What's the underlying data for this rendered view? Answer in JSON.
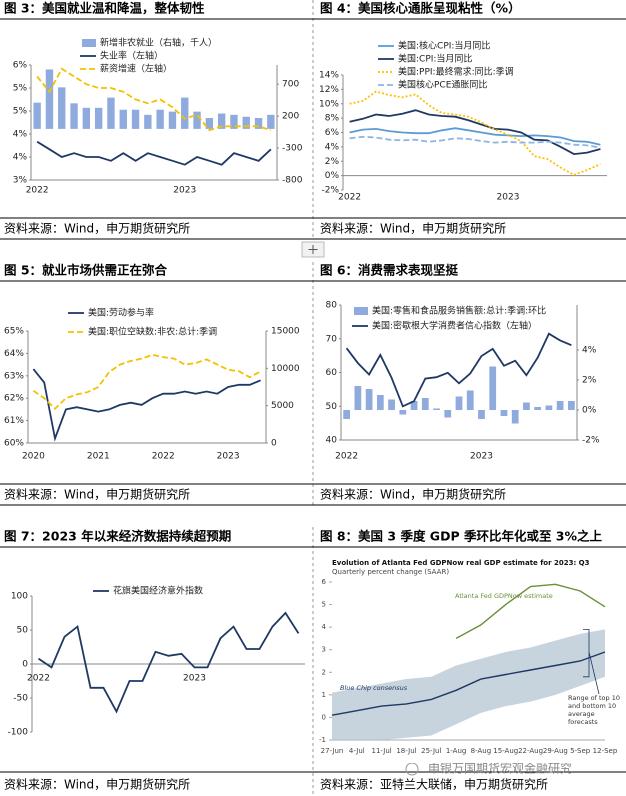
{
  "chart_data": [
    {
      "type": "bar-line",
      "title": "图 3：美国就业温和降温，整体韧性",
      "source": "资料来源：Wind，申万期货研究所",
      "categories": [
        "2022",
        null,
        null,
        null,
        null,
        null,
        null,
        null,
        null,
        null,
        null,
        null,
        "2023",
        null,
        null,
        null,
        null,
        null,
        null,
        null
      ],
      "series": [
        {
          "name": "新增非农就业（右轴，千人）",
          "type": "bar",
          "axis": "y2",
          "color": "#8faadc",
          "values": [
            410,
            930,
            650,
            400,
            330,
            330,
            490,
            300,
            300,
            220,
            300,
            270,
            490,
            270,
            170,
            240,
            220,
            190,
            170,
            220
          ]
        },
        {
          "name": "失业率（左轴）",
          "type": "line",
          "color": "#1f3864",
          "values": [
            4.0,
            3.8,
            3.6,
            3.7,
            3.6,
            3.6,
            3.5,
            3.7,
            3.5,
            3.7,
            3.6,
            3.5,
            3.4,
            3.6,
            3.5,
            3.4,
            3.7,
            3.6,
            3.5,
            3.8
          ]
        },
        {
          "name": "薪资增速（左轴）",
          "type": "line",
          "dash": "dashed",
          "color": "#f2c200",
          "values": [
            5.7,
            5.3,
            5.9,
            5.7,
            5.5,
            5.4,
            5.4,
            5.3,
            5.1,
            5.0,
            5.1,
            4.9,
            4.6,
            4.7,
            4.3,
            4.4,
            4.4,
            4.4,
            4.4,
            4.3
          ]
        }
      ],
      "ylim": [
        3,
        6
      ],
      "yticks": [
        {
          "value": 3,
          "label": "3%"
        },
        {
          "value": 3.6,
          "label": "4%"
        },
        {
          "value": 4.2,
          "label": "4%"
        },
        {
          "value": 4.8,
          "label": "5%"
        },
        {
          "value": 5.4,
          "label": "5%"
        },
        {
          "value": 6,
          "label": "6%"
        }
      ],
      "y2lim": [
        -800,
        1000
      ],
      "y2ticks": [
        -800,
        -300,
        200,
        700
      ]
    },
    {
      "type": "line",
      "title": "图 4：美国核心通胀呈现粘性（%）",
      "source": "资料来源：Wind，申万期货研究所",
      "categories": [
        "2022",
        null,
        null,
        null,
        null,
        null,
        null,
        null,
        null,
        null,
        null,
        null,
        "2023",
        null,
        null,
        null,
        null,
        null,
        null,
        null
      ],
      "series": [
        {
          "name": "美国:核心CPI:当月同比",
          "color": "#5b9bd5",
          "values": [
            6.0,
            6.4,
            6.5,
            6.2,
            6.0,
            5.9,
            5.9,
            6.3,
            6.6,
            6.3,
            6.0,
            5.7,
            5.6,
            5.5,
            5.6,
            5.5,
            5.3,
            4.8,
            4.7,
            4.3
          ]
        },
        {
          "name": "美国:CPI:当月同比",
          "color": "#1f3864",
          "values": [
            7.5,
            7.9,
            8.5,
            8.3,
            8.6,
            9.1,
            8.5,
            8.3,
            8.2,
            7.7,
            7.1,
            6.5,
            6.4,
            6.0,
            5.0,
            4.9,
            4.0,
            3.0,
            3.2,
            3.7
          ]
        },
        {
          "name": "美国:PPI:最终需求:同比:季调",
          "dash": "dotted",
          "color": "#ffc000",
          "values": [
            10.0,
            10.4,
            11.7,
            11.2,
            10.9,
            11.3,
            9.8,
            8.7,
            8.5,
            8.2,
            7.4,
            6.4,
            5.7,
            4.8,
            2.7,
            2.3,
            1.1,
            0.1,
            0.8,
            1.6
          ]
        },
        {
          "name": "美国核心PCE通胀同比",
          "dash": "dashed",
          "color": "#8eb4e3",
          "values": [
            5.2,
            5.4,
            5.3,
            5.0,
            4.9,
            5.0,
            4.7,
            4.9,
            5.2,
            5.1,
            4.8,
            4.6,
            4.7,
            4.6,
            4.6,
            4.7,
            4.6,
            4.3,
            4.2,
            3.9
          ]
        }
      ],
      "ylim": [
        -2,
        14
      ],
      "yticks": [
        {
          "value": -2,
          "label": "-2%"
        },
        {
          "value": 0,
          "label": "0%"
        },
        {
          "value": 2,
          "label": "2%"
        },
        {
          "value": 4,
          "label": "4%"
        },
        {
          "value": 6,
          "label": "6%"
        },
        {
          "value": 8,
          "label": "8%"
        },
        {
          "value": 10,
          "label": "10%"
        },
        {
          "value": 12,
          "label": "12%"
        },
        {
          "value": 14,
          "label": "14%"
        }
      ]
    },
    {
      "type": "line",
      "title": "图 5：就业市场供需正在弥合",
      "source": "资料来源：Wind，申万期货研究所",
      "categories": [
        "2020",
        null,
        null,
        null,
        null,
        null,
        "2021",
        null,
        null,
        null,
        null,
        null,
        "2022",
        null,
        null,
        null,
        null,
        null,
        "2023",
        null,
        null,
        null
      ],
      "series": [
        {
          "name": "美国:劳动参与率",
          "color": "#1f3864",
          "values": [
            63.3,
            62.7,
            60.2,
            61.5,
            61.6,
            61.5,
            61.4,
            61.5,
            61.7,
            61.8,
            61.7,
            62.0,
            62.2,
            62.2,
            62.3,
            62.2,
            62.3,
            62.2,
            62.5,
            62.6,
            62.6,
            62.8
          ]
        },
        {
          "name": "美国:职位空缺数:非农:总计:季调",
          "dash": "dashed",
          "axis": "y2",
          "color": "#f2c200",
          "values": [
            7000,
            6000,
            4600,
            6000,
            6500,
            6800,
            7500,
            9500,
            10500,
            11000,
            11300,
            11800,
            11500,
            11300,
            10500,
            10700,
            11200,
            10500,
            9800,
            9600,
            8800,
            9600
          ]
        }
      ],
      "ylim": [
        60,
        65
      ],
      "yticks": [
        {
          "value": 60,
          "label": "60%"
        },
        {
          "value": 61,
          "label": "61%"
        },
        {
          "value": 62,
          "label": "62%"
        },
        {
          "value": 63,
          "label": "63%"
        },
        {
          "value": 64,
          "label": "64%"
        },
        {
          "value": 65,
          "label": "65%"
        }
      ],
      "y2lim": [
        0,
        15000
      ],
      "y2ticks": [
        0,
        5000,
        10000,
        15000
      ]
    },
    {
      "type": "bar-line",
      "title": "图 6：消费需求表现坚挺",
      "source": "资料来源：Wind，申万期货研究所",
      "categories": [
        "2022",
        null,
        null,
        null,
        null,
        null,
        null,
        null,
        null,
        null,
        null,
        null,
        "2023",
        null,
        null,
        null,
        null,
        null,
        null,
        null,
        null
      ],
      "series": [
        {
          "name": "美国:零售和食品服务销售额:总计:季调:环比",
          "type": "bar",
          "axis": "y2",
          "color": "#8faadc",
          "values": [
            -0.6,
            1.6,
            1.4,
            1.0,
            0.7,
            -0.3,
            0.6,
            0.8,
            0.1,
            -0.5,
            0.9,
            1.3,
            -0.6,
            2.9,
            -0.4,
            -0.9,
            0.5,
            0.2,
            0.3,
            0.6,
            0.6
          ]
        },
        {
          "name": "美国:密歇根大学消费者信心指数（左轴）",
          "type": "line",
          "color": "#1f3864",
          "values": [
            67.2,
            62.8,
            59.4,
            65.2,
            58.4,
            50.0,
            51.5,
            58.2,
            58.6,
            59.9,
            56.8,
            59.7,
            64.9,
            67.0,
            62.0,
            63.5,
            59.2,
            64.4,
            71.5,
            69.5,
            68.1
          ]
        }
      ],
      "ylim": [
        40,
        80
      ],
      "yticks": [
        40,
        50,
        60,
        70,
        80
      ],
      "y2lim": [
        -2,
        7
      ],
      "y2ticks": [
        {
          "value": -2,
          "label": "-2%"
        },
        {
          "value": 0,
          "label": "0%"
        },
        {
          "value": 2,
          "label": "2%"
        },
        {
          "value": 4,
          "label": "4%"
        }
      ]
    },
    {
      "type": "line",
      "title": "图 7：2023 年以来经济数据持续超预期",
      "source": "资料来源：Wind，申万期货研究所",
      "categories": [
        "2022",
        null,
        null,
        null,
        null,
        null,
        null,
        null,
        null,
        null,
        null,
        null,
        "2023",
        null,
        null,
        null,
        null,
        null,
        null,
        null,
        null
      ],
      "series": [
        {
          "name": "花旗美国经济意外指数",
          "color": "#1f3864",
          "values": [
            8,
            -5,
            40,
            55,
            -35,
            -35,
            -70,
            -25,
            -25,
            18,
            12,
            15,
            -5,
            -5,
            38,
            55,
            22,
            22,
            55,
            75,
            45
          ]
        }
      ],
      "ylim": [
        -100,
        100
      ],
      "yticks": [
        -100,
        -50,
        0,
        50,
        100
      ]
    },
    {
      "type": "band-line",
      "title": "图 8：美国 3 季度 GDP 季环比年化或至 3%之上",
      "source": "资料来源：亚特兰大联储，申万期货研究所",
      "inner_title": "Evolution of Atlanta Fed GDPNow real GDP estimate for 2023: Q3",
      "subtitle": "Quarterly percent change (SAAR)",
      "categories": [
        "27-Jun",
        "4-Jul",
        "11-Jul",
        "18-Jul",
        "25-Jul",
        "1-Aug",
        "8-Aug",
        "15-Aug",
        "22-Aug",
        "29-Aug",
        "5-Sep",
        "12-Sep"
      ],
      "band": {
        "color": "#b9c8d4",
        "upper": [
          1.1,
          1.3,
          1.5,
          1.7,
          1.8,
          2.3,
          2.6,
          2.9,
          3.1,
          3.4,
          3.7,
          3.9
        ],
        "lower": [
          -1.0,
          -1.0,
          -1.0,
          -0.9,
          -0.8,
          -0.3,
          0.2,
          0.5,
          0.7,
          1.0,
          1.4,
          1.8
        ]
      },
      "series": [
        {
          "name": "Atlanta Fed GDPNow estimate",
          "color": "#6a8f3a",
          "values": [
            null,
            null,
            null,
            null,
            null,
            3.5,
            4.1,
            5.0,
            5.8,
            5.9,
            5.6,
            4.9
          ]
        },
        {
          "name": "Blue Chip consensus",
          "color": "#1f3864",
          "values": [
            0.1,
            0.3,
            0.5,
            0.6,
            0.8,
            1.2,
            1.7,
            1.9,
            2.1,
            2.3,
            2.5,
            2.9
          ]
        }
      ],
      "annotations": [
        "Range of top 10 and bottom 10 average forecasts"
      ],
      "ylim": [
        -1,
        6
      ],
      "yticks": [
        -1,
        0,
        1,
        2,
        3,
        4,
        5,
        6
      ]
    }
  ],
  "watermark": "申银万国期货宏观金融研究"
}
